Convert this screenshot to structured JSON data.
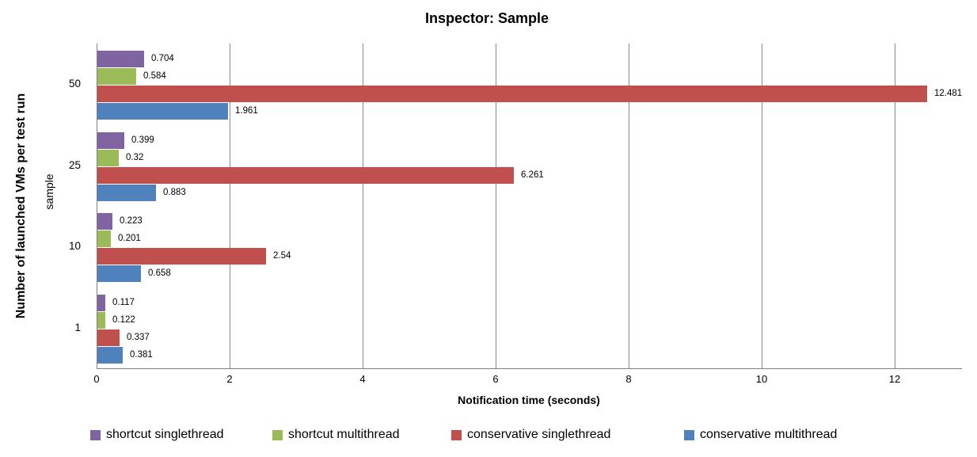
{
  "chart_data": {
    "type": "bar",
    "orientation": "horizontal",
    "title": "Inspector: Sample",
    "xlabel": "Notification time (seconds)",
    "ylabel": "Number of launched VMs per test run",
    "ylabel_sub": "sample",
    "categories": [
      "50",
      "25",
      "10",
      "1"
    ],
    "series": [
      {
        "name": "shortcut singlethread",
        "color": "#8064A2",
        "values": [
          0.704,
          0.399,
          0.223,
          0.117
        ]
      },
      {
        "name": "shortcut multithread",
        "color": "#9BBB59",
        "values": [
          0.584,
          0.32,
          0.201,
          0.122
        ]
      },
      {
        "name": "conservative singlethread",
        "color": "#C0504D",
        "values": [
          12.481,
          6.261,
          2.54,
          0.337
        ]
      },
      {
        "name": "conservative multithread",
        "color": "#4F81BD",
        "values": [
          1.961,
          0.883,
          0.658,
          0.381
        ]
      }
    ],
    "xticks": [
      0,
      2,
      4,
      6,
      8,
      10,
      12
    ],
    "xlim": [
      0,
      13
    ],
    "grid": true,
    "legend_position": "bottom",
    "gridline_color": "#898989",
    "axis_color": "#808080"
  }
}
